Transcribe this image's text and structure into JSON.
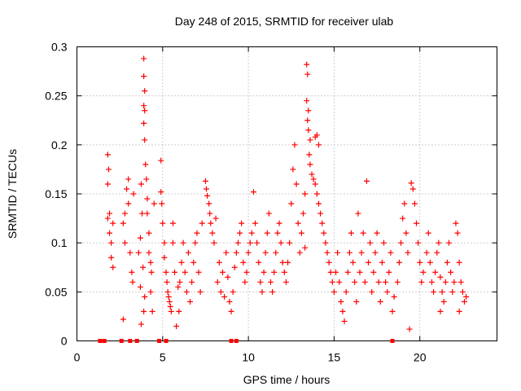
{
  "chart_data": {
    "type": "scatter",
    "title": "Day 248 of 2015, SRMTID for receiver ulab",
    "xlabel": "GPS time / hours",
    "ylabel": "SRMTID / TECUs",
    "xlim": [
      0,
      24.5
    ],
    "ylim": [
      0,
      0.3
    ],
    "x_ticks": [
      0,
      5,
      10,
      15,
      20
    ],
    "x_tick_labels": [
      "0",
      "5",
      "10",
      "15",
      "20"
    ],
    "y_ticks": [
      0,
      0.05,
      0.1,
      0.15,
      0.2,
      0.25,
      0.3
    ],
    "y_tick_labels": [
      "0",
      "0.05",
      "0.1",
      "0.15",
      "0.2",
      "0.25",
      "0.3"
    ],
    "grid": true,
    "series": [
      {
        "name": "SRMTID",
        "marker": "plus",
        "color": "#ff0000",
        "points": [
          [
            1.8,
            0.19
          ],
          [
            1.8,
            0.16
          ],
          [
            1.8,
            0.125
          ],
          [
            1.9,
            0.13
          ],
          [
            1.9,
            0.11
          ],
          [
            2.0,
            0.1
          ],
          [
            2.0,
            0.085
          ],
          [
            2.1,
            0.075
          ],
          [
            2.1,
            0.12
          ],
          [
            1.85,
            0.175
          ],
          [
            2.7,
            0.022
          ],
          [
            2.7,
            0.12
          ],
          [
            2.8,
            0.13
          ],
          [
            2.8,
            0.1
          ],
          [
            2.9,
            0.155
          ],
          [
            3.0,
            0.165
          ],
          [
            3.0,
            0.14
          ],
          [
            3.1,
            0.09
          ],
          [
            3.2,
            0.07
          ],
          [
            3.25,
            0.06
          ],
          [
            3.3,
            0.15
          ],
          [
            3.6,
            0.09
          ],
          [
            3.7,
            0.105
          ],
          [
            3.75,
            0.16
          ],
          [
            3.8,
            0.13
          ],
          [
            3.85,
            0.075
          ],
          [
            3.7,
            0.055
          ],
          [
            3.9,
            0.03
          ],
          [
            3.95,
            0.045
          ],
          [
            3.75,
            0.017
          ],
          [
            3.9,
            0.288
          ],
          [
            3.9,
            0.27
          ],
          [
            3.95,
            0.255
          ],
          [
            3.9,
            0.24
          ],
          [
            3.95,
            0.235
          ],
          [
            3.9,
            0.222
          ],
          [
            3.95,
            0.205
          ],
          [
            4.0,
            0.18
          ],
          [
            4.05,
            0.165
          ],
          [
            4.1,
            0.145
          ],
          [
            4.1,
            0.13
          ],
          [
            4.2,
            0.11
          ],
          [
            4.2,
            0.09
          ],
          [
            4.3,
            0.08
          ],
          [
            4.35,
            0.07
          ],
          [
            4.4,
            0.03
          ],
          [
            4.3,
            0.05
          ],
          [
            4.5,
            0.14
          ],
          [
            4.9,
            0.184
          ],
          [
            4.9,
            0.152
          ],
          [
            4.95,
            0.14
          ],
          [
            5.0,
            0.12
          ],
          [
            5.1,
            0.1
          ],
          [
            5.1,
            0.085
          ],
          [
            5.2,
            0.07
          ],
          [
            5.25,
            0.06
          ],
          [
            5.3,
            0.05
          ],
          [
            5.35,
            0.045
          ],
          [
            5.4,
            0.04
          ],
          [
            5.45,
            0.035
          ],
          [
            5.5,
            0.03
          ],
          [
            5.6,
            0.12
          ],
          [
            5.6,
            0.1
          ],
          [
            5.7,
            0.07
          ],
          [
            5.8,
            0.015
          ],
          [
            5.9,
            0.055
          ],
          [
            5.95,
            0.03
          ],
          [
            6.0,
            0.06
          ],
          [
            6.1,
            0.08
          ],
          [
            6.2,
            0.1
          ],
          [
            6.3,
            0.07
          ],
          [
            6.4,
            0.05
          ],
          [
            6.5,
            0.09
          ],
          [
            6.6,
            0.04
          ],
          [
            6.7,
            0.06
          ],
          [
            6.8,
            0.08
          ],
          [
            6.9,
            0.1
          ],
          [
            7.0,
            0.11
          ],
          [
            7.1,
            0.07
          ],
          [
            7.2,
            0.05
          ],
          [
            7.3,
            0.12
          ],
          [
            7.5,
            0.163
          ],
          [
            7.55,
            0.155
          ],
          [
            7.6,
            0.148
          ],
          [
            7.7,
            0.14
          ],
          [
            7.75,
            0.13
          ],
          [
            7.8,
            0.12
          ],
          [
            7.9,
            0.11
          ],
          [
            8.0,
            0.1
          ],
          [
            8.1,
            0.125
          ],
          [
            8.2,
            0.06
          ],
          [
            8.3,
            0.08
          ],
          [
            8.4,
            0.05
          ],
          [
            8.5,
            0.07
          ],
          [
            8.6,
            0.045
          ],
          [
            8.7,
            0.09
          ],
          [
            8.8,
            0.065
          ],
          [
            8.9,
            0.04
          ],
          [
            9.0,
            0.03
          ],
          [
            9.1,
            0.05
          ],
          [
            9.2,
            0.075
          ],
          [
            9.3,
            0.09
          ],
          [
            9.4,
            0.1
          ],
          [
            9.5,
            0.11
          ],
          [
            9.6,
            0.12
          ],
          [
            9.7,
            0.08
          ],
          [
            9.8,
            0.06
          ],
          [
            9.9,
            0.07
          ],
          [
            10.0,
            0.09
          ],
          [
            10.1,
            0.1
          ],
          [
            10.2,
            0.11
          ],
          [
            10.3,
            0.152
          ],
          [
            10.4,
            0.12
          ],
          [
            10.5,
            0.1
          ],
          [
            10.6,
            0.08
          ],
          [
            10.7,
            0.06
          ],
          [
            10.8,
            0.05
          ],
          [
            10.9,
            0.07
          ],
          [
            11.0,
            0.09
          ],
          [
            11.1,
            0.11
          ],
          [
            11.2,
            0.13
          ],
          [
            11.3,
            0.06
          ],
          [
            11.4,
            0.05
          ],
          [
            11.5,
            0.07
          ],
          [
            11.6,
            0.09
          ],
          [
            11.7,
            0.11
          ],
          [
            11.8,
            0.12
          ],
          [
            11.9,
            0.1
          ],
          [
            12.0,
            0.08
          ],
          [
            12.1,
            0.07
          ],
          [
            12.2,
            0.06
          ],
          [
            12.3,
            0.08
          ],
          [
            12.4,
            0.1
          ],
          [
            12.5,
            0.14
          ],
          [
            12.6,
            0.175
          ],
          [
            12.7,
            0.2
          ],
          [
            12.8,
            0.16
          ],
          [
            12.9,
            0.12
          ],
          [
            13.0,
            0.09
          ],
          [
            13.4,
            0.282
          ],
          [
            13.45,
            0.272
          ],
          [
            13.4,
            0.245
          ],
          [
            13.5,
            0.235
          ],
          [
            13.45,
            0.225
          ],
          [
            13.5,
            0.215
          ],
          [
            13.6,
            0.205
          ],
          [
            13.55,
            0.19
          ],
          [
            13.6,
            0.18
          ],
          [
            13.7,
            0.17
          ],
          [
            13.8,
            0.165
          ],
          [
            13.9,
            0.16
          ],
          [
            14.0,
            0.15
          ],
          [
            14.1,
            0.14
          ],
          [
            14.2,
            0.13
          ],
          [
            14.1,
            0.2
          ],
          [
            14.0,
            0.21
          ],
          [
            13.9,
            0.208
          ],
          [
            13.3,
            0.15
          ],
          [
            13.2,
            0.13
          ],
          [
            13.1,
            0.11
          ],
          [
            13.3,
            0.095
          ],
          [
            14.3,
            0.12
          ],
          [
            14.4,
            0.11
          ],
          [
            14.5,
            0.1
          ],
          [
            14.6,
            0.09
          ],
          [
            14.7,
            0.08
          ],
          [
            14.8,
            0.07
          ],
          [
            14.9,
            0.06
          ],
          [
            15.0,
            0.05
          ],
          [
            15.1,
            0.07
          ],
          [
            15.2,
            0.09
          ],
          [
            15.3,
            0.06
          ],
          [
            15.4,
            0.04
          ],
          [
            15.5,
            0.03
          ],
          [
            15.6,
            0.02
          ],
          [
            15.7,
            0.05
          ],
          [
            15.8,
            0.07
          ],
          [
            15.9,
            0.09
          ],
          [
            16.0,
            0.11
          ],
          [
            16.1,
            0.08
          ],
          [
            16.2,
            0.06
          ],
          [
            16.3,
            0.04
          ],
          [
            16.4,
            0.13
          ],
          [
            16.5,
            0.07
          ],
          [
            16.6,
            0.09
          ],
          [
            16.7,
            0.11
          ],
          [
            16.8,
            0.06
          ],
          [
            16.9,
            0.163
          ],
          [
            17.0,
            0.08
          ],
          [
            17.1,
            0.1
          ],
          [
            17.2,
            0.05
          ],
          [
            17.3,
            0.07
          ],
          [
            17.4,
            0.09
          ],
          [
            17.5,
            0.11
          ],
          [
            17.6,
            0.06
          ],
          [
            17.7,
            0.04
          ],
          [
            17.8,
            0.08
          ],
          [
            17.9,
            0.1
          ],
          [
            18.0,
            0.06
          ],
          [
            18.1,
            0.05
          ],
          [
            18.2,
            0.07
          ],
          [
            18.3,
            0.09
          ],
          [
            18.4,
            0.03
          ],
          [
            18.5,
            0.045
          ],
          [
            18.7,
            0.06
          ],
          [
            18.8,
            0.08
          ],
          [
            18.9,
            0.1
          ],
          [
            19.0,
            0.125
          ],
          [
            19.1,
            0.14
          ],
          [
            19.2,
            0.11
          ],
          [
            19.3,
            0.09
          ],
          [
            19.4,
            0.012
          ],
          [
            19.5,
            0.161
          ],
          [
            19.6,
            0.155
          ],
          [
            19.7,
            0.14
          ],
          [
            19.8,
            0.12
          ],
          [
            19.9,
            0.1
          ],
          [
            20.0,
            0.08
          ],
          [
            20.1,
            0.06
          ],
          [
            20.2,
            0.07
          ],
          [
            20.4,
            0.09
          ],
          [
            20.5,
            0.11
          ],
          [
            20.6,
            0.08
          ],
          [
            20.7,
            0.06
          ],
          [
            20.8,
            0.05
          ],
          [
            20.9,
            0.07
          ],
          [
            21.0,
            0.09
          ],
          [
            21.1,
            0.1
          ],
          [
            21.2,
            0.065
          ],
          [
            21.3,
            0.05
          ],
          [
            21.4,
            0.04
          ],
          [
            21.5,
            0.06
          ],
          [
            21.6,
            0.08
          ],
          [
            21.7,
            0.1
          ],
          [
            21.8,
            0.07
          ],
          [
            21.9,
            0.05
          ],
          [
            22.0,
            0.06
          ],
          [
            22.1,
            0.12
          ],
          [
            22.2,
            0.11
          ],
          [
            22.3,
            0.08
          ],
          [
            22.4,
            0.06
          ],
          [
            22.5,
            0.05
          ],
          [
            22.6,
            0.04
          ],
          [
            22.7,
            0.045
          ],
          [
            22.3,
            0.03
          ],
          [
            21.2,
            0.03
          ]
        ]
      }
    ],
    "zero_series": {
      "name": "zero-valued samples",
      "marker": "square",
      "color": "#ff0000",
      "x": [
        1.35,
        1.6,
        2.6,
        3.1,
        3.5,
        4.8,
        5.2,
        9.0,
        9.3,
        18.4
      ]
    }
  }
}
